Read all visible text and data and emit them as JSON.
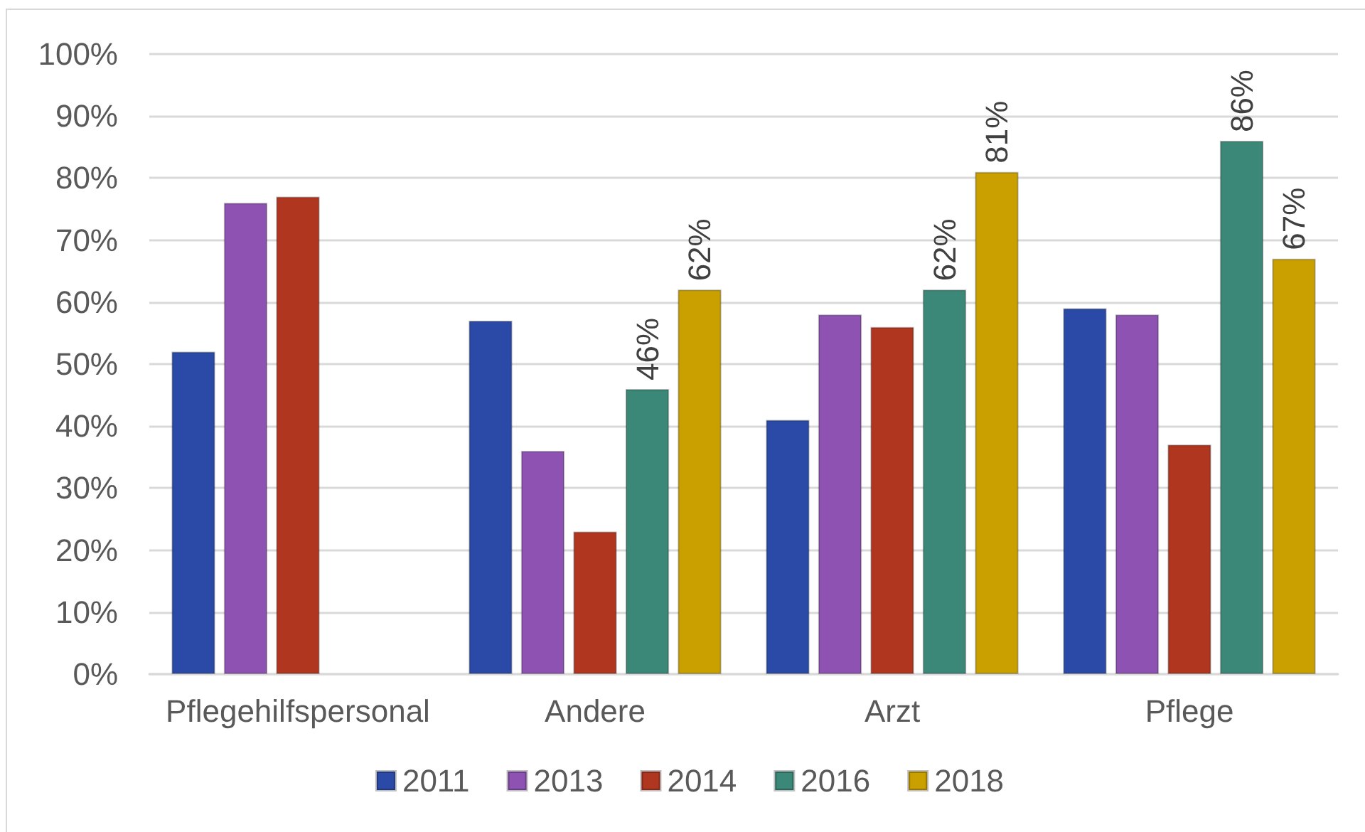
{
  "chart_data": {
    "type": "bar",
    "categories": [
      "Pflegehilfspersonal",
      "Andere",
      "Arzt",
      "Pflege"
    ],
    "series": [
      {
        "name": "2011",
        "color": "#2b4aa8",
        "values": [
          52,
          57,
          41,
          59
        ]
      },
      {
        "name": "2013",
        "color": "#8e52b3",
        "values": [
          76,
          36,
          58,
          58
        ]
      },
      {
        "name": "2014",
        "color": "#b1361f",
        "values": [
          77,
          23,
          56,
          37
        ]
      },
      {
        "name": "2016",
        "color": "#3b8778",
        "values": [
          null,
          46,
          62,
          86
        ],
        "value_labels": [
          null,
          "46%",
          "62%",
          "86%"
        ]
      },
      {
        "name": "2018",
        "color": "#c9a000",
        "values": [
          null,
          62,
          81,
          67
        ],
        "value_labels": [
          null,
          "62%",
          "81%",
          "67%"
        ]
      }
    ],
    "ylim": [
      0,
      100
    ],
    "yticks": [
      {
        "value": 0,
        "label": "0%"
      },
      {
        "value": 10,
        "label": "10%"
      },
      {
        "value": 20,
        "label": "20%"
      },
      {
        "value": 30,
        "label": "30%"
      },
      {
        "value": 40,
        "label": "40%"
      },
      {
        "value": 50,
        "label": "50%"
      },
      {
        "value": 60,
        "label": "60%"
      },
      {
        "value": 70,
        "label": "70%"
      },
      {
        "value": 80,
        "label": "80%"
      },
      {
        "value": 90,
        "label": "90%"
      },
      {
        "value": 100,
        "label": "100%"
      }
    ],
    "grid": "y",
    "legend": "bottom"
  }
}
